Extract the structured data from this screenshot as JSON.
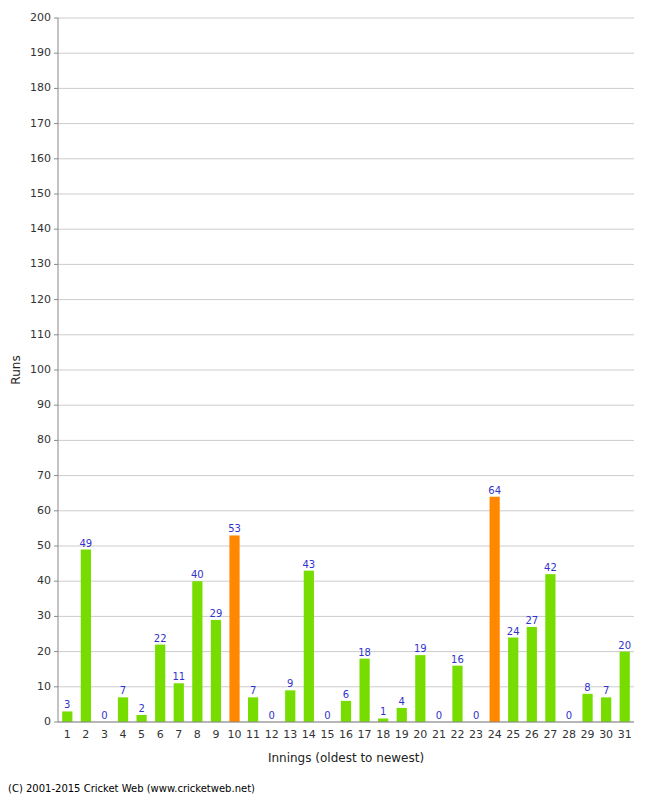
{
  "chart_data": {
    "type": "bar",
    "xlabel": "Innings (oldest to newest)",
    "ylabel": "Runs",
    "annotations": [
      "(C) 2001-2015 Cricket Web (www.cricketweb.net)"
    ],
    "categories": [
      "1",
      "2",
      "3",
      "4",
      "5",
      "6",
      "7",
      "8",
      "9",
      "10",
      "11",
      "12",
      "13",
      "14",
      "15",
      "16",
      "17",
      "18",
      "19",
      "20",
      "21",
      "22",
      "23",
      "24",
      "25",
      "26",
      "27",
      "28",
      "29",
      "30",
      "31"
    ],
    "values": [
      3,
      49,
      0,
      7,
      2,
      22,
      11,
      40,
      29,
      53,
      7,
      0,
      9,
      43,
      0,
      6,
      18,
      1,
      4,
      19,
      0,
      16,
      0,
      64,
      24,
      27,
      42,
      0,
      8,
      7,
      20
    ],
    "colors": [
      "#77dd00",
      "#77dd00",
      "#77dd00",
      "#77dd00",
      "#77dd00",
      "#77dd00",
      "#77dd00",
      "#77dd00",
      "#77dd00",
      "#ff8800",
      "#77dd00",
      "#77dd00",
      "#77dd00",
      "#77dd00",
      "#77dd00",
      "#77dd00",
      "#77dd00",
      "#77dd00",
      "#77dd00",
      "#77dd00",
      "#77dd00",
      "#77dd00",
      "#77dd00",
      "#ff8800",
      "#77dd00",
      "#77dd00",
      "#77dd00",
      "#77dd00",
      "#77dd00",
      "#77dd00",
      "#77dd00"
    ],
    "ylim": [
      0,
      200
    ],
    "yticks": [
      0,
      10,
      20,
      30,
      40,
      50,
      60,
      70,
      80,
      90,
      100,
      110,
      120,
      130,
      140,
      150,
      160,
      170,
      180,
      190,
      200
    ],
    "grid": true,
    "data_labels": true
  }
}
